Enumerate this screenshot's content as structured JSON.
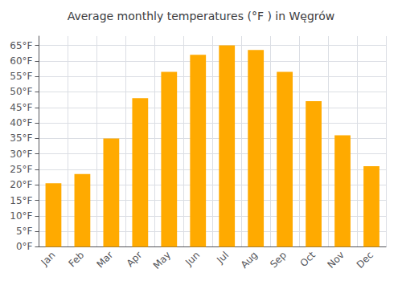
{
  "chart_data": {
    "type": "bar",
    "title": "Average monthly temperatures (°F ) in Węgrów",
    "categories": [
      "Jan",
      "Feb",
      "Mar",
      "Apr",
      "May",
      "Jun",
      "Jul",
      "Aug",
      "Sep",
      "Oct",
      "Nov",
      "Dec"
    ],
    "values": [
      20.5,
      23.5,
      35.0,
      48.0,
      56.5,
      62.0,
      65.0,
      63.5,
      56.5,
      47.0,
      36.0,
      26.0
    ],
    "color": "#FFAA00",
    "ylim": [
      0,
      68
    ],
    "yticks": [
      {
        "value": 0,
        "label": "0°F"
      },
      {
        "value": 5,
        "label": "5°F"
      },
      {
        "value": 10,
        "label": "10°F"
      },
      {
        "value": 15,
        "label": "15°F"
      },
      {
        "value": 20,
        "label": "20°F"
      },
      {
        "value": 25,
        "label": "25°F"
      },
      {
        "value": 30,
        "label": "30°F"
      },
      {
        "value": 35,
        "label": "35°F"
      },
      {
        "value": 40,
        "label": "40°F"
      },
      {
        "value": 45,
        "label": "45°F"
      },
      {
        "value": 50,
        "label": "50°F"
      },
      {
        "value": 55,
        "label": "55°F"
      },
      {
        "value": 60,
        "label": "60°F"
      },
      {
        "value": 65,
        "label": "65°F"
      }
    ],
    "grid": true
  }
}
